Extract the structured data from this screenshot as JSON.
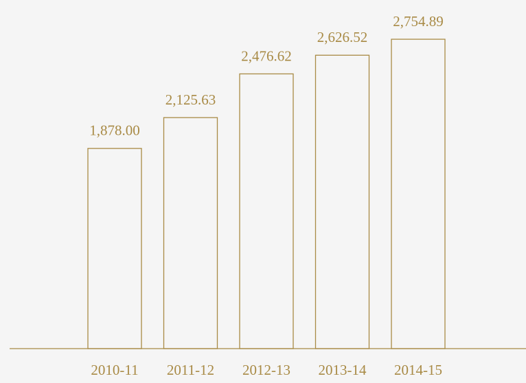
{
  "chart_data": {
    "type": "bar",
    "categories": [
      "2010-11",
      "2011-12",
      "2012-13",
      "2013-14",
      "2014-15"
    ],
    "values": [
      1878.0,
      2125.63,
      2476.62,
      2626.52,
      2754.89
    ],
    "value_labels": [
      "1,878.00",
      "2,125.63",
      "2,476.62",
      "2,626.52",
      "2,754.89"
    ],
    "color": "#a88a45",
    "ylim": [
      270,
      3070
    ]
  }
}
